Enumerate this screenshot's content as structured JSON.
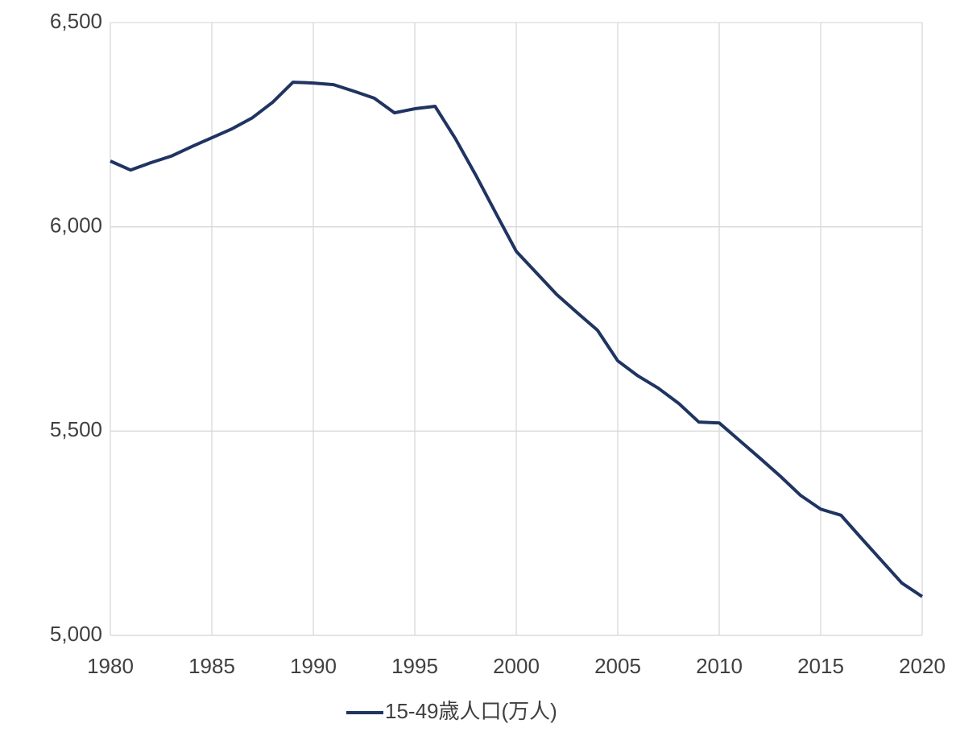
{
  "chart_data": {
    "type": "line",
    "x": [
      1980,
      1981,
      1982,
      1983,
      1984,
      1985,
      1986,
      1987,
      1988,
      1989,
      1990,
      1991,
      1992,
      1993,
      1994,
      1995,
      1996,
      1997,
      1998,
      1999,
      2000,
      2001,
      2002,
      2003,
      2004,
      2005,
      2006,
      2007,
      2008,
      2009,
      2010,
      2011,
      2012,
      2013,
      2014,
      2015,
      2016,
      2017,
      2018,
      2019,
      2020
    ],
    "series": [
      {
        "name": "15-49歳人口(万人)",
        "color": "#1f3461",
        "values": [
          6161,
          6139,
          6157,
          6173,
          6196,
          6218,
          6240,
          6267,
          6305,
          6354,
          6352,
          6348,
          6332,
          6315,
          6279,
          6289,
          6295,
          6216,
          6127,
          6033,
          5940,
          5887,
          5834,
          5790,
          5747,
          5672,
          5635,
          5605,
          5568,
          5522,
          5520,
          5477,
          5434,
          5390,
          5343,
          5309,
          5294,
          5238,
          5183,
          5128,
          5095
        ]
      }
    ],
    "xlim": [
      1980,
      2020
    ],
    "xticks": [
      1980,
      1985,
      1990,
      1995,
      2000,
      2005,
      2010,
      2015,
      2020
    ],
    "ylim": [
      5000,
      6500
    ],
    "yticks": [
      {
        "value": 5000,
        "label": "5,000"
      },
      {
        "value": 5500,
        "label": "5,500"
      },
      {
        "value": 6000,
        "label": "6,000"
      },
      {
        "value": 6500,
        "label": "6,500"
      }
    ],
    "grid": true,
    "legend": "bottom"
  }
}
